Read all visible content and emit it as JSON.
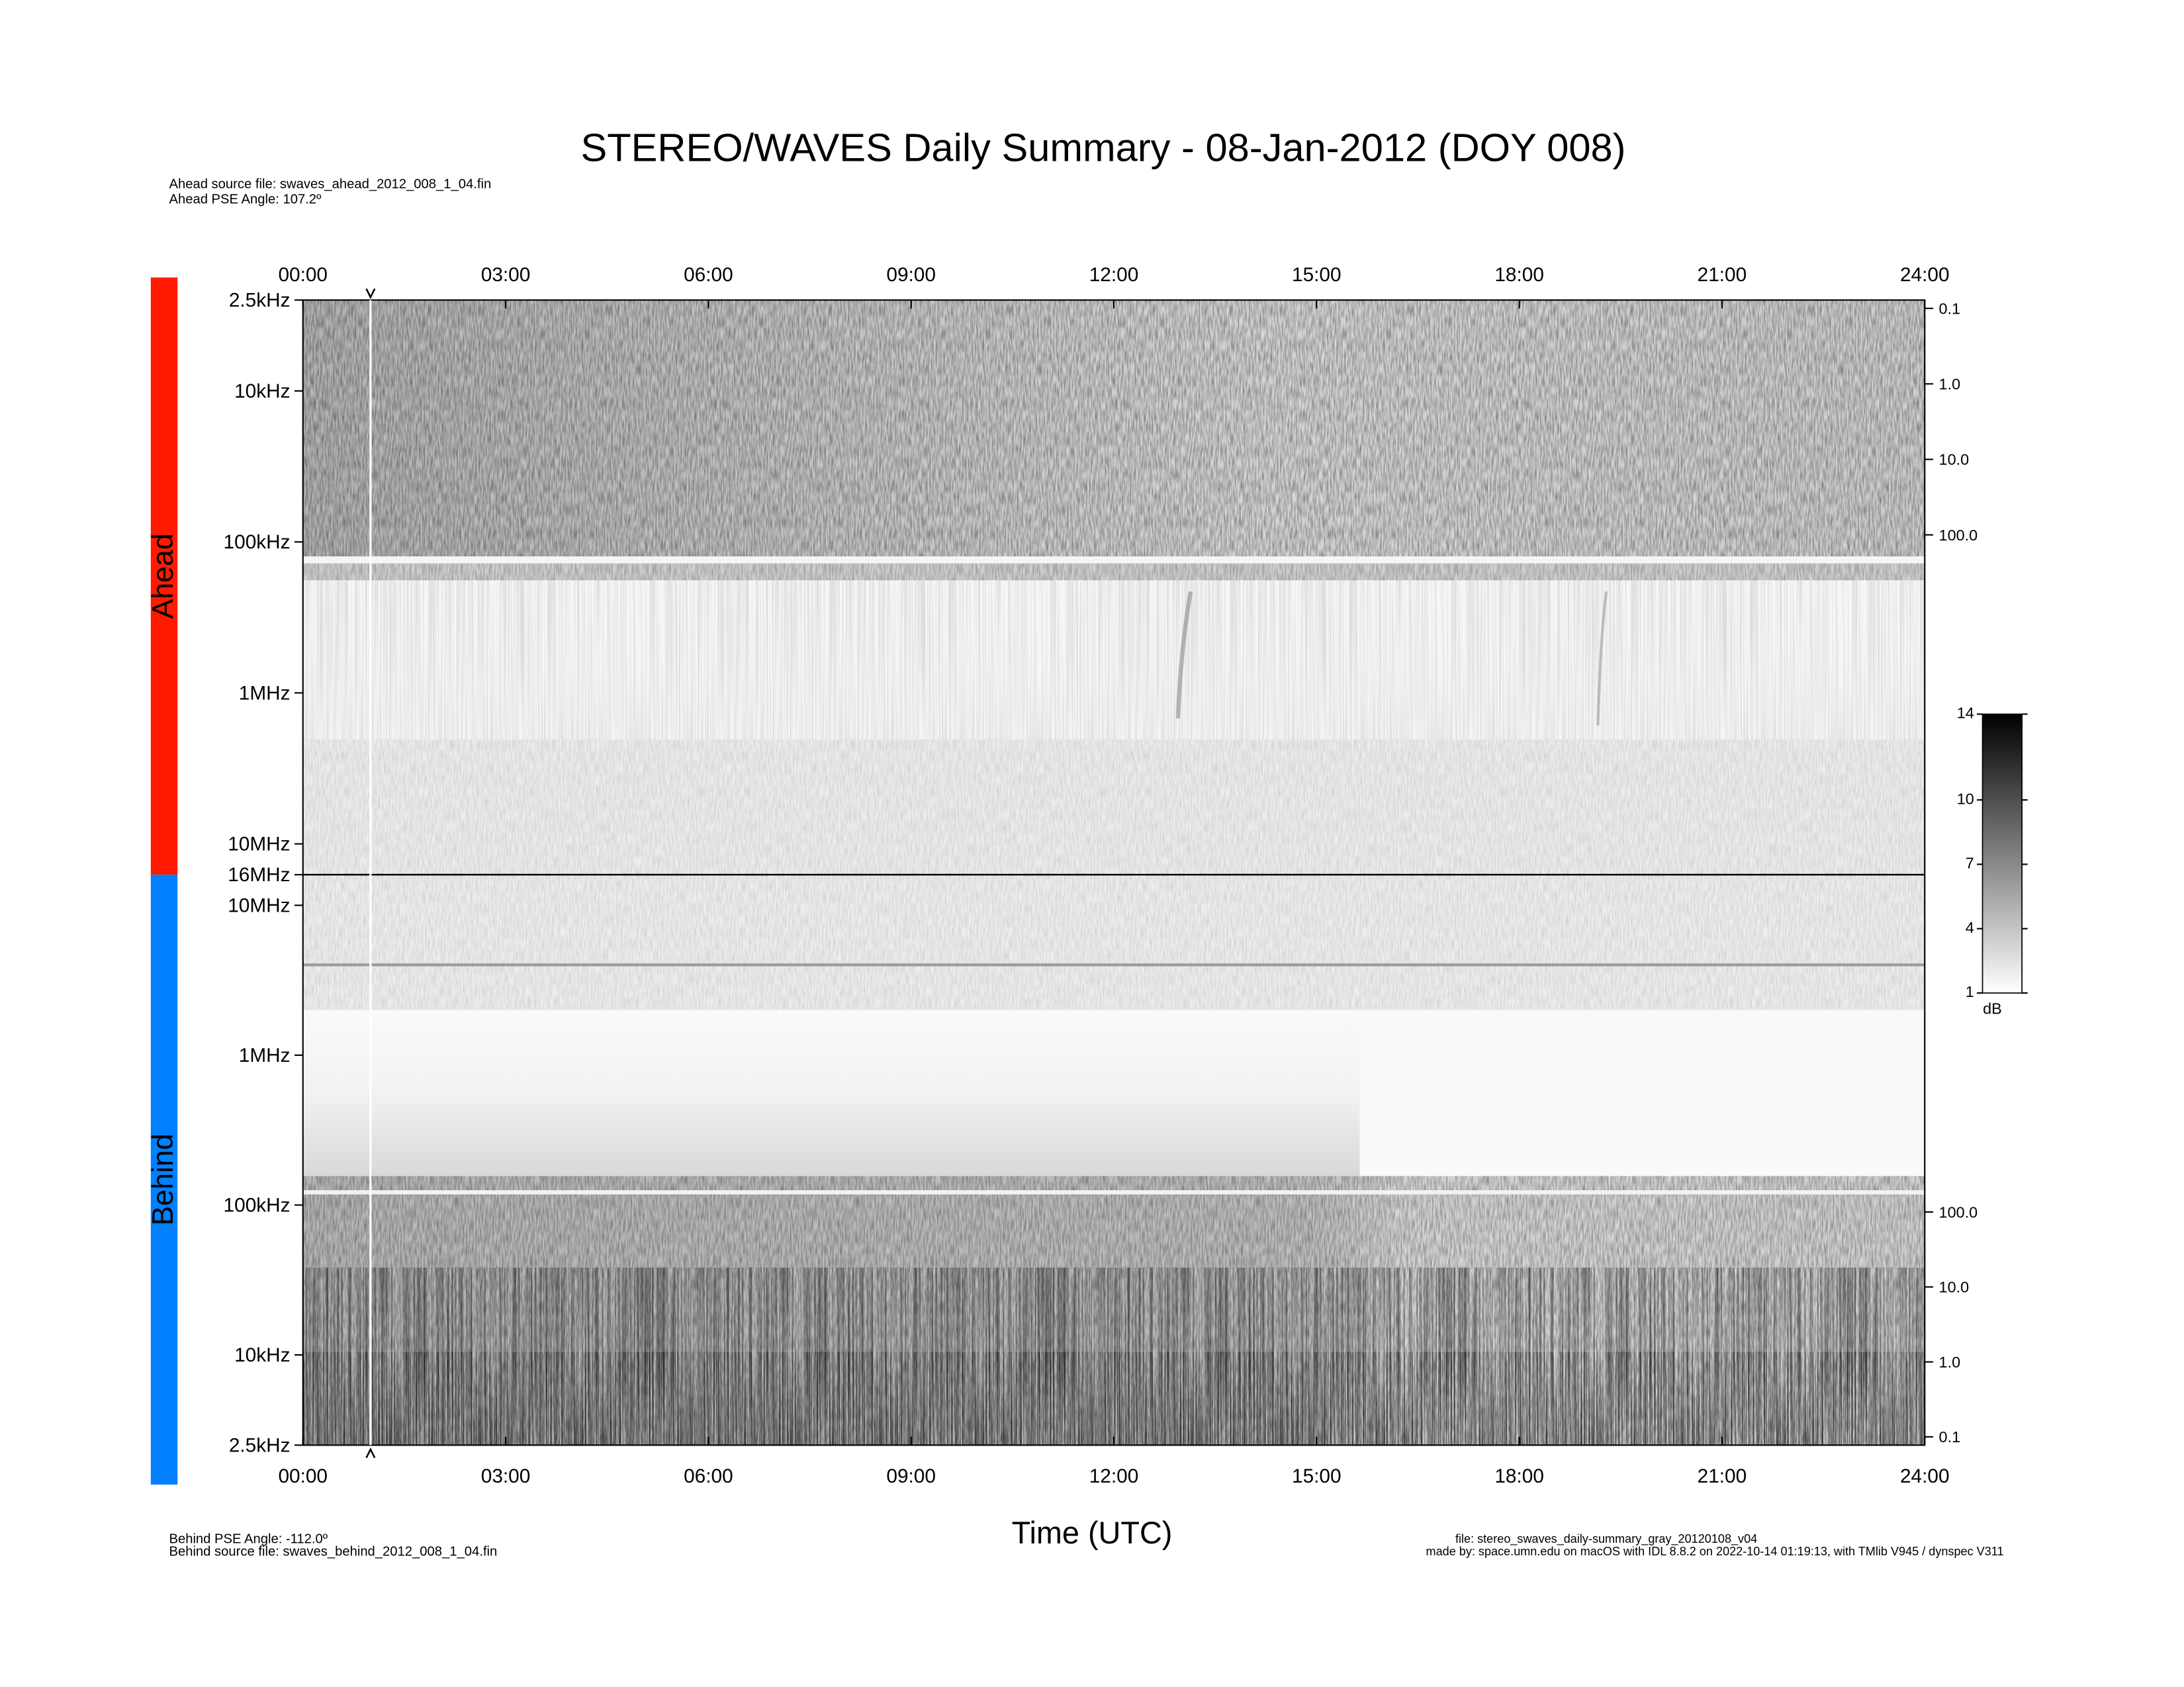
{
  "chart_data": {
    "type": "spectrogram",
    "title": "STEREO/WAVES Daily Summary - 08-Jan-2012 (DOY 008)",
    "header_notes": [
      "Ahead source file: swaves_ahead_2012_008_1_04.fin",
      "Ahead PSE Angle:  107.2º"
    ],
    "footer_left": [
      "Behind PSE Angle: -112.0º",
      "Behind source file: swaves_behind_2012_008_1_04.fin"
    ],
    "footer_right": [
      "file: stereo_swaves_daily-summary_gray_20120108_v04",
      "made by: space.umn.edu on macOS with IDL 8.8.2 on 2022-10-14 01:19:13, with TMlib V945 / dynspec V311"
    ],
    "xlabel": "Time (UTC)",
    "xlim": [
      0,
      24
    ],
    "xticks": [
      {
        "value": 0,
        "label": "00:00"
      },
      {
        "value": 3,
        "label": "03:00"
      },
      {
        "value": 6,
        "label": "06:00"
      },
      {
        "value": 9,
        "label": "09:00"
      },
      {
        "value": 12,
        "label": "12:00"
      },
      {
        "value": 15,
        "label": "15:00"
      },
      {
        "value": 18,
        "label": "18:00"
      },
      {
        "value": 21,
        "label": "21:00"
      },
      {
        "value": 24,
        "label": "24:00"
      }
    ],
    "caret_time": 1,
    "panels": [
      {
        "name": "Ahead",
        "color": "#ff1a00",
        "yscale": "log",
        "low_at": "top",
        "ylim": [
          2500,
          16000000
        ],
        "yticks": [
          {
            "value": 2500,
            "label": "2.5kHz"
          },
          {
            "value": 10000,
            "label": "10kHz"
          },
          {
            "value": 100000,
            "label": "100kHz"
          },
          {
            "value": 1000000,
            "label": "1MHz"
          },
          {
            "value": 10000000,
            "label": "10MHz"
          },
          {
            "value": 16000000,
            "label": "16MHz"
          }
        ],
        "y2scale": "log",
        "y2lim": [
          0.0775,
          3170000
        ],
        "y2ticks": [
          {
            "value": 0.1,
            "label": "0.1"
          },
          {
            "value": 1,
            "label": "1.0"
          },
          {
            "value": 10,
            "label": "10.0"
          },
          {
            "value": 100,
            "label": "100.0"
          }
        ]
      },
      {
        "name": "Behind",
        "color": "#0080ff",
        "yscale": "log",
        "low_at": "bottom",
        "ylim": [
          2500,
          16000000
        ],
        "yticks": [
          {
            "value": 2500,
            "label": "2.5kHz"
          },
          {
            "value": 10000,
            "label": "10kHz"
          },
          {
            "value": 100000,
            "label": "100kHz"
          },
          {
            "value": 1000000,
            "label": "1MHz"
          },
          {
            "value": 10000000,
            "label": "10MHz"
          }
        ],
        "y2scale": "log",
        "y2lim": [
          0.0775,
          3170000
        ],
        "y2ticks": [
          {
            "value": 0.1,
            "label": "0.1"
          },
          {
            "value": 1,
            "label": "1.0"
          },
          {
            "value": 10,
            "label": "10.0"
          },
          {
            "value": 100,
            "label": "100.0"
          }
        ]
      }
    ],
    "colorbar": {
      "label": "dB",
      "lim": [
        1,
        14
      ],
      "ticks": [
        1,
        4,
        7,
        10,
        14
      ]
    }
  }
}
